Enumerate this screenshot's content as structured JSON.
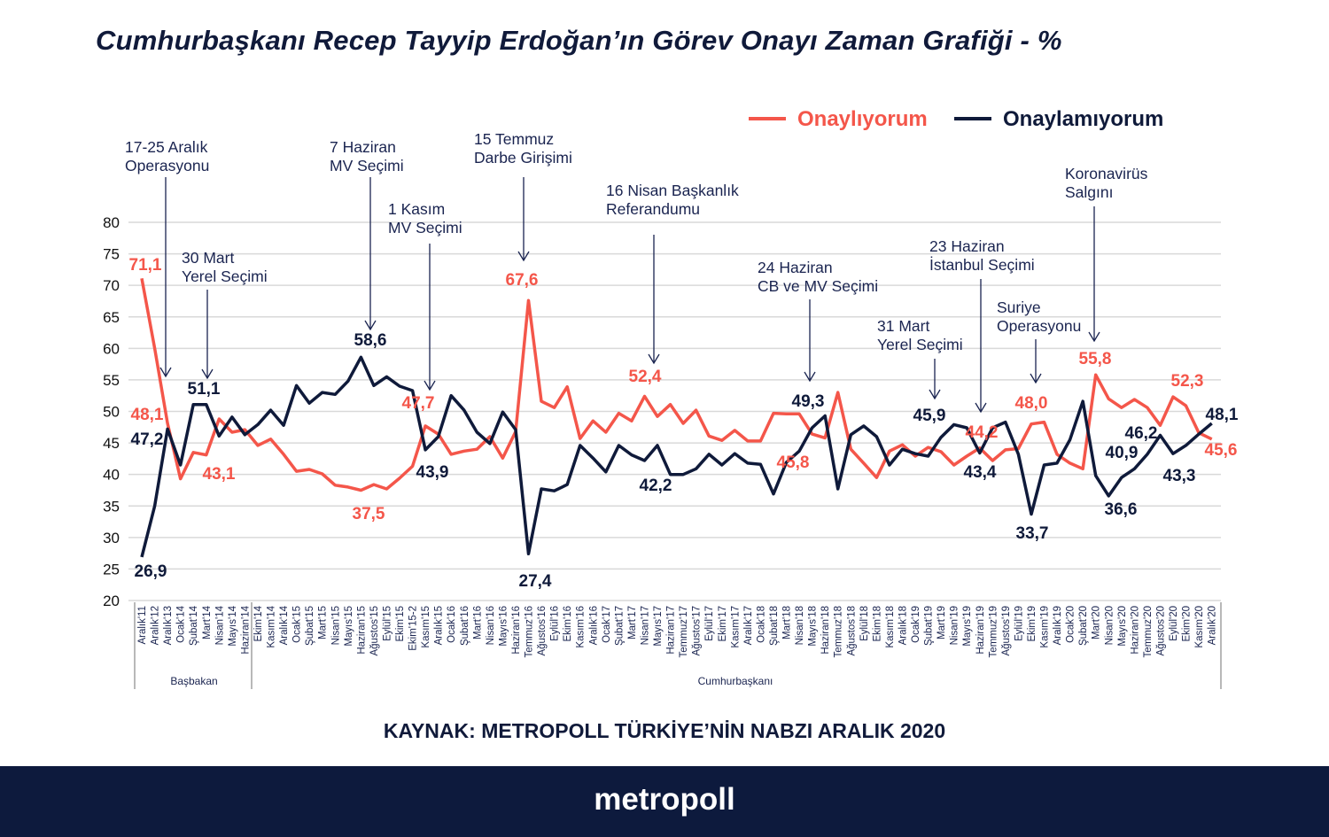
{
  "title": "Cumhurbaşkanı Recep Tayyip Erdoğan’ın Görev Onayı Zaman Grafiği - %",
  "source": "KAYNAK: METROPOLL TÜRKİYE’NİN NABZI ARALIK 2020",
  "brand": "metropoll",
  "colors": {
    "approve": "#f4564a",
    "disapprove": "#0f1a3a",
    "footer": "#0d1a3d"
  },
  "chart_data": {
    "type": "line",
    "title": "Cumhurbaşkanı Recep Tayyip Erdoğan’ın Görev Onayı Zaman Grafiği - %",
    "legend_position": "top-right",
    "grid": true,
    "ylim": [
      20,
      80
    ],
    "yticks": [
      20,
      25,
      30,
      35,
      40,
      45,
      50,
      55,
      60,
      65,
      70,
      75,
      80
    ],
    "categories": [
      "Aralık'11",
      "Aralık'12",
      "Aralık'13",
      "Ocak'14",
      "Şubat'14",
      "Mart'14",
      "Nisan'14",
      "Mayıs'14",
      "Haziran'14",
      "Ekim'14",
      "Kasım'14",
      "Aralık'14",
      "Ocak'15",
      "Şubat'15",
      "Mart'15",
      "Nisan'15",
      "Mayıs'15",
      "Haziran'15",
      "Ağustos'15",
      "Eylül'15",
      "Ekim'15",
      "Ekim'15-2",
      "Kasım'15",
      "Aralık'15",
      "Ocak'16",
      "Şubat'16",
      "Mart'16",
      "Nisan'16",
      "Mayıs'16",
      "Haziran'16",
      "Temmuz'16",
      "Ağustos'16",
      "Eylül'16",
      "Ekim'16",
      "Kasım'16",
      "Aralık'16",
      "Ocak'17",
      "Şubat'17",
      "Mart'17",
      "Nisan'17",
      "Mayıs'17",
      "Haziran'17",
      "Temmuz'17",
      "Ağustos'17",
      "Eylül'17",
      "Ekim'17",
      "Kasım'17",
      "Aralık'17",
      "Ocak'18",
      "Şubat'18",
      "Mart'18",
      "Nisan'18",
      "Mayıs'18",
      "Haziran'18",
      "Temmuz'18",
      "Ağustos'18",
      "Eylül'18",
      "Ekim'18",
      "Kasım'18",
      "Aralık'18",
      "Ocak'19",
      "Şubat'19",
      "Mart'19",
      "Nisan'19",
      "Mayıs'19",
      "Haziran'19",
      "Temmuz'19",
      "Ağustos'19",
      "Eylül'19",
      "Ekim'19",
      "Kasım'19",
      "Aralık'19",
      "Ocak'20",
      "Şubat'20",
      "Mart'20",
      "Nisan'20",
      "Mayıs'20",
      "Haziran'20",
      "Temmuz'20",
      "Ağustos'20",
      "Eylül'20",
      "Ekim'20",
      "Kasım'20",
      "Aralık'20"
    ],
    "groups": [
      {
        "label": "Başbakan",
        "from": "Aralık'11",
        "to": "Haziran'14"
      },
      {
        "label": "Cumhurbaşkanı",
        "from": "Ekim'14",
        "to": "Aralık'20"
      }
    ],
    "series": [
      {
        "name": "Onaylıyorum",
        "color": "#f4564a",
        "values": [
          71.1,
          60.0,
          48.1,
          39.3,
          43.5,
          43.1,
          48.8,
          46.7,
          47.1,
          44.6,
          45.6,
          43.2,
          40.5,
          40.8,
          40.1,
          38.3,
          38.0,
          37.5,
          38.4,
          37.7,
          39.4,
          41.3,
          47.7,
          46.4,
          43.2,
          43.7,
          44.0,
          46.0,
          42.6,
          46.8,
          67.6,
          51.6,
          50.6,
          53.9,
          45.7,
          48.5,
          46.7,
          49.7,
          48.5,
          52.4,
          49.2,
          51.1,
          48.1,
          50.2,
          46.1,
          45.4,
          47.0,
          45.3,
          45.3,
          49.7,
          49.6,
          49.6,
          46.4,
          45.8,
          53.0,
          44.0,
          41.8,
          39.5,
          43.7,
          44.7,
          42.9,
          44.3,
          43.6,
          41.5,
          42.9,
          44.2,
          42.2,
          43.9,
          44.1,
          48.0,
          48.3,
          43.2,
          41.8,
          40.9,
          55.8,
          52.0,
          50.6,
          51.9,
          50.6,
          47.8,
          52.3,
          50.9,
          46.6,
          45.6
        ]
      },
      {
        "name": "Onaylamıyorum",
        "color": "#0f1a3a",
        "values": [
          26.9,
          35.0,
          47.2,
          41.5,
          51.1,
          51.1,
          46.1,
          49.1,
          46.3,
          47.9,
          50.2,
          47.8,
          54.1,
          51.3,
          53.0,
          52.7,
          54.8,
          58.6,
          54.1,
          55.5,
          54.0,
          53.3,
          43.9,
          46.0,
          52.5,
          50.2,
          46.7,
          44.9,
          49.9,
          47.1,
          27.4,
          37.7,
          37.4,
          38.4,
          44.6,
          42.6,
          40.4,
          44.6,
          43.1,
          42.2,
          44.6,
          40.0,
          40.0,
          40.9,
          43.2,
          41.5,
          43.3,
          41.8,
          41.6,
          36.9,
          41.9,
          43.7,
          47.4,
          49.3,
          37.7,
          46.3,
          47.7,
          46.0,
          41.5,
          44.0,
          43.3,
          42.9,
          45.9,
          47.9,
          47.4,
          43.4,
          47.4,
          48.3,
          43.2,
          33.7,
          41.5,
          41.8,
          45.5,
          51.6,
          39.8,
          36.6,
          39.5,
          40.9,
          43.2,
          46.2,
          43.3,
          44.6,
          46.4,
          48.1
        ]
      }
    ],
    "data_labels": [
      {
        "series": 0,
        "text": "71,1"
      },
      {
        "series": 0,
        "text": "48,1"
      },
      {
        "series": 0,
        "text": "43,1"
      },
      {
        "series": 0,
        "text": "37,5"
      },
      {
        "series": 0,
        "text": "47,7"
      },
      {
        "series": 0,
        "text": "67,6"
      },
      {
        "series": 0,
        "text": "52,4"
      },
      {
        "series": 0,
        "text": "45,8"
      },
      {
        "series": 0,
        "text": "44,2"
      },
      {
        "series": 0,
        "text": "48,0"
      },
      {
        "series": 0,
        "text": "55,8"
      },
      {
        "series": 0,
        "text": "52,3"
      },
      {
        "series": 0,
        "text": "45,6"
      },
      {
        "series": 1,
        "text": "47,2"
      },
      {
        "series": 1,
        "text": "26,9"
      },
      {
        "series": 1,
        "text": "51,1"
      },
      {
        "series": 1,
        "text": "58,6"
      },
      {
        "series": 1,
        "text": "43,9"
      },
      {
        "series": 1,
        "text": "27,4"
      },
      {
        "series": 1,
        "text": "42,2"
      },
      {
        "series": 1,
        "text": "49,3"
      },
      {
        "series": 1,
        "text": "45,9"
      },
      {
        "series": 1,
        "text": "43,4"
      },
      {
        "series": 1,
        "text": "33,7"
      },
      {
        "series": 1,
        "text": "36,6"
      },
      {
        "series": 1,
        "text": "40,9"
      },
      {
        "series": 1,
        "text": "46,2"
      },
      {
        "series": 1,
        "text": "43,3"
      },
      {
        "series": 1,
        "text": "48,1"
      }
    ],
    "annotations": [
      {
        "lines": [
          "17-25 Aralık",
          "Operasyonu"
        ]
      },
      {
        "lines": [
          "30 Mart",
          "Yerel Seçimi"
        ]
      },
      {
        "lines": [
          "7 Haziran",
          "MV Seçimi"
        ]
      },
      {
        "lines": [
          "1 Kasım",
          "MV Seçimi"
        ]
      },
      {
        "lines": [
          "15 Temmuz",
          "Darbe Girişimi"
        ]
      },
      {
        "lines": [
          "16 Nisan Başkanlık",
          "Referandumu"
        ]
      },
      {
        "lines": [
          "24 Haziran",
          "CB  ve MV Seçimi"
        ]
      },
      {
        "lines": [
          "31 Mart",
          "Yerel Seçimi"
        ]
      },
      {
        "lines": [
          "23 Haziran",
          "İstanbul Seçimi"
        ]
      },
      {
        "lines": [
          "Suriye",
          "Operasyonu"
        ]
      },
      {
        "lines": [
          "Koronavirüs",
          "Salgını"
        ]
      }
    ]
  }
}
